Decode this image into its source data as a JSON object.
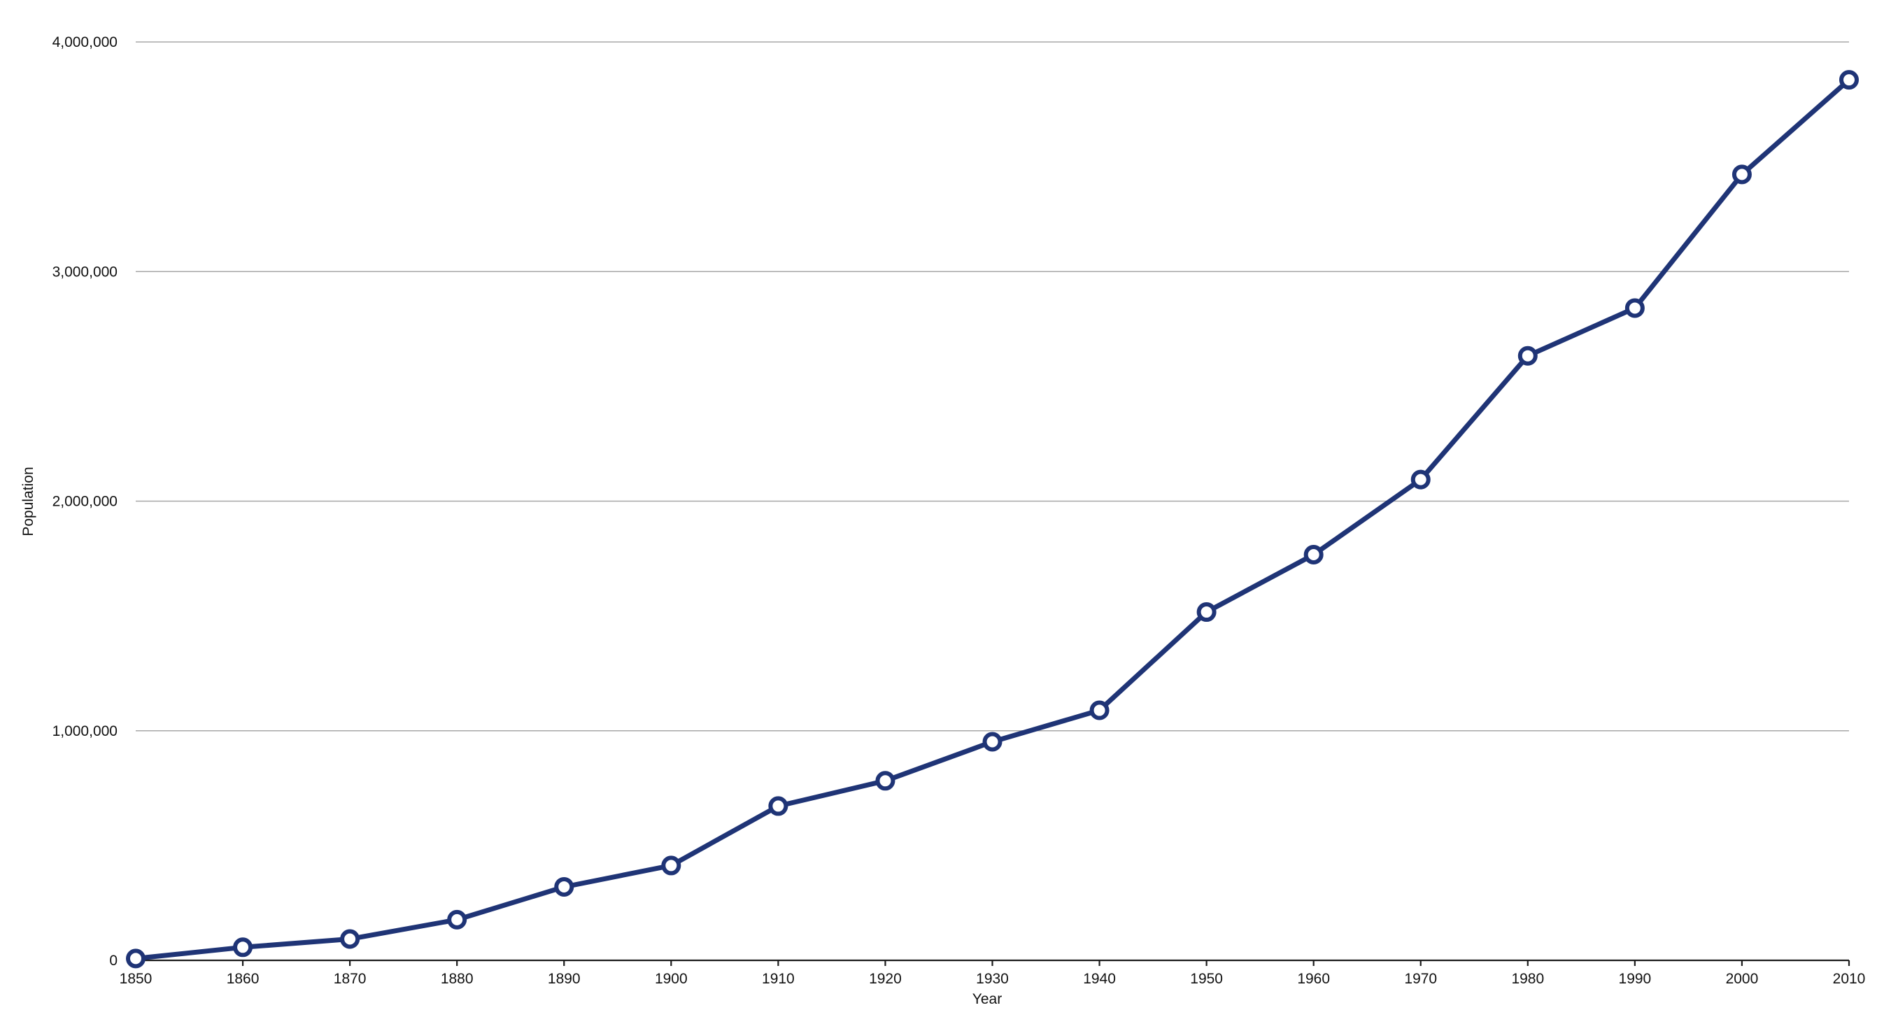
{
  "chart_data": {
    "type": "line",
    "title": "",
    "xlabel": "Year",
    "ylabel": "Population",
    "x": [
      1850,
      1860,
      1870,
      1880,
      1890,
      1900,
      1910,
      1920,
      1930,
      1940,
      1950,
      1960,
      1970,
      1980,
      1990,
      2000,
      2010
    ],
    "x_tick_labels": [
      "1850",
      "1860",
      "1870",
      "1880",
      "1890",
      "1900",
      "1910",
      "1920",
      "1930",
      "1940",
      "1950",
      "1960",
      "1970",
      "1980",
      "1990",
      "2000",
      "2010"
    ],
    "series": [
      {
        "values": [
          8000,
          57000,
          93000,
          177000,
          320000,
          413000,
          672000,
          782000,
          952000,
          1089000,
          1517000,
          1767000,
          2094000,
          2633000,
          2841000,
          3423000,
          3835000
        ]
      }
    ],
    "ylim": [
      0,
      4000000
    ],
    "y_ticks": [
      0,
      1000000,
      2000000,
      3000000,
      4000000
    ],
    "y_tick_labels": [
      "0",
      "1,000,000",
      "2,000,000",
      "3,000,000",
      "4,000,000"
    ],
    "grid": true,
    "legend": "none",
    "colors": {
      "series": "#1f3476",
      "grid": "#a7a7a7",
      "axis": "#1b1b1b",
      "text": "#111111",
      "marker_fill": "#ffffff"
    }
  }
}
